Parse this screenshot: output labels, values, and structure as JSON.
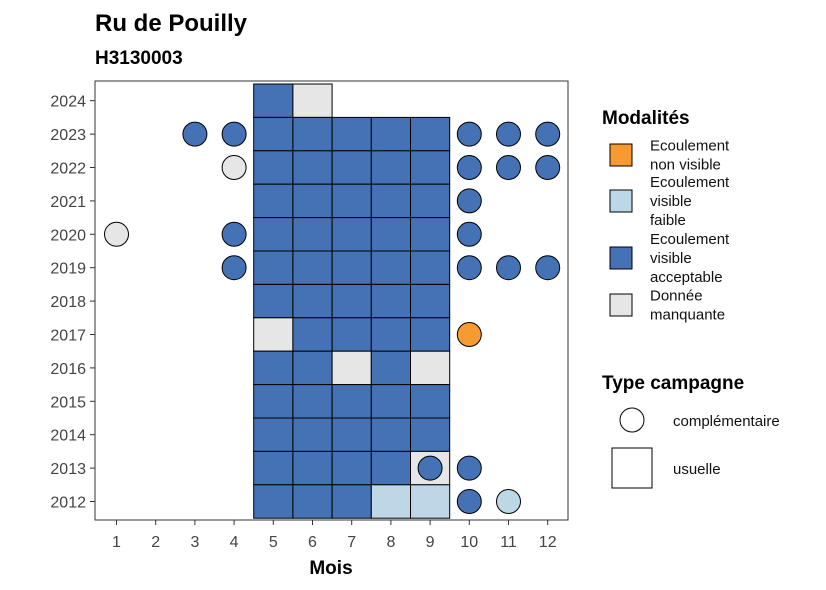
{
  "chart_data": {
    "type": "heatmap",
    "title": "Ru de Pouilly",
    "subtitle": "H3130003",
    "xlabel": "Mois",
    "ylabel": "",
    "x_ticks": [
      "1",
      "2",
      "3",
      "4",
      "5",
      "6",
      "7",
      "8",
      "9",
      "10",
      "11",
      "12"
    ],
    "y_ticks": [
      "2012",
      "2013",
      "2014",
      "2015",
      "2016",
      "2017",
      "2018",
      "2019",
      "2020",
      "2021",
      "2022",
      "2023",
      "2024"
    ],
    "x_range": [
      1,
      12
    ],
    "y_range": [
      2012,
      2024
    ],
    "grid": false,
    "colors": {
      "ecoulement_non_visible": "#F69A31",
      "ecoulement_visible_faible": "#BDD7E7",
      "ecoulement_visible_acceptable": "#4472B5",
      "donnee_manquante": "#E6E6E6"
    },
    "legend_modalites": {
      "title": "Modalités",
      "placement": "right",
      "items": [
        {
          "key": "ecoulement_non_visible",
          "lines": [
            "Ecoulement",
            "non visible"
          ]
        },
        {
          "key": "ecoulement_visible_faible",
          "lines": [
            "Ecoulement",
            "visible",
            "faible"
          ]
        },
        {
          "key": "ecoulement_visible_acceptable",
          "lines": [
            "Ecoulement",
            "visible",
            "acceptable"
          ]
        },
        {
          "key": "donnee_manquante",
          "lines": [
            "Donnée",
            "manquante"
          ]
        }
      ]
    },
    "legend_type": {
      "title": "Type campagne",
      "placement": "right",
      "items": [
        {
          "shape": "circle",
          "label": "complémentaire"
        },
        {
          "shape": "square",
          "label": "usuelle"
        }
      ]
    },
    "squares": [
      {
        "year": 2024,
        "month": 5,
        "value": "ecoulement_visible_acceptable"
      },
      {
        "year": 2024,
        "month": 6,
        "value": "donnee_manquante"
      },
      {
        "year": 2023,
        "month": 5,
        "value": "ecoulement_visible_acceptable"
      },
      {
        "year": 2023,
        "month": 6,
        "value": "ecoulement_visible_acceptable"
      },
      {
        "year": 2023,
        "month": 7,
        "value": "ecoulement_visible_acceptable"
      },
      {
        "year": 2023,
        "month": 8,
        "value": "ecoulement_visible_acceptable"
      },
      {
        "year": 2023,
        "month": 9,
        "value": "ecoulement_visible_acceptable"
      },
      {
        "year": 2022,
        "month": 5,
        "value": "ecoulement_visible_acceptable"
      },
      {
        "year": 2022,
        "month": 6,
        "value": "ecoulement_visible_acceptable"
      },
      {
        "year": 2022,
        "month": 7,
        "value": "ecoulement_visible_acceptable"
      },
      {
        "year": 2022,
        "month": 8,
        "value": "ecoulement_visible_acceptable"
      },
      {
        "year": 2022,
        "month": 9,
        "value": "ecoulement_visible_acceptable"
      },
      {
        "year": 2021,
        "month": 5,
        "value": "ecoulement_visible_acceptable"
      },
      {
        "year": 2021,
        "month": 6,
        "value": "ecoulement_visible_acceptable"
      },
      {
        "year": 2021,
        "month": 7,
        "value": "ecoulement_visible_acceptable"
      },
      {
        "year": 2021,
        "month": 8,
        "value": "ecoulement_visible_acceptable"
      },
      {
        "year": 2021,
        "month": 9,
        "value": "ecoulement_visible_acceptable"
      },
      {
        "year": 2020,
        "month": 5,
        "value": "ecoulement_visible_acceptable"
      },
      {
        "year": 2020,
        "month": 6,
        "value": "ecoulement_visible_acceptable"
      },
      {
        "year": 2020,
        "month": 7,
        "value": "ecoulement_visible_acceptable"
      },
      {
        "year": 2020,
        "month": 8,
        "value": "ecoulement_visible_acceptable"
      },
      {
        "year": 2020,
        "month": 9,
        "value": "ecoulement_visible_acceptable"
      },
      {
        "year": 2019,
        "month": 5,
        "value": "ecoulement_visible_acceptable"
      },
      {
        "year": 2019,
        "month": 6,
        "value": "ecoulement_visible_acceptable"
      },
      {
        "year": 2019,
        "month": 7,
        "value": "ecoulement_visible_acceptable"
      },
      {
        "year": 2019,
        "month": 8,
        "value": "ecoulement_visible_acceptable"
      },
      {
        "year": 2019,
        "month": 9,
        "value": "ecoulement_visible_acceptable"
      },
      {
        "year": 2018,
        "month": 5,
        "value": "ecoulement_visible_acceptable"
      },
      {
        "year": 2018,
        "month": 6,
        "value": "ecoulement_visible_acceptable"
      },
      {
        "year": 2018,
        "month": 7,
        "value": "ecoulement_visible_acceptable"
      },
      {
        "year": 2018,
        "month": 8,
        "value": "ecoulement_visible_acceptable"
      },
      {
        "year": 2018,
        "month": 9,
        "value": "ecoulement_visible_acceptable"
      },
      {
        "year": 2017,
        "month": 5,
        "value": "donnee_manquante"
      },
      {
        "year": 2017,
        "month": 6,
        "value": "ecoulement_visible_acceptable"
      },
      {
        "year": 2017,
        "month": 7,
        "value": "ecoulement_visible_acceptable"
      },
      {
        "year": 2017,
        "month": 8,
        "value": "ecoulement_visible_acceptable"
      },
      {
        "year": 2017,
        "month": 9,
        "value": "ecoulement_visible_acceptable"
      },
      {
        "year": 2016,
        "month": 5,
        "value": "ecoulement_visible_acceptable"
      },
      {
        "year": 2016,
        "month": 6,
        "value": "ecoulement_visible_acceptable"
      },
      {
        "year": 2016,
        "month": 7,
        "value": "donnee_manquante"
      },
      {
        "year": 2016,
        "month": 8,
        "value": "ecoulement_visible_acceptable"
      },
      {
        "year": 2016,
        "month": 9,
        "value": "donnee_manquante"
      },
      {
        "year": 2015,
        "month": 5,
        "value": "ecoulement_visible_acceptable"
      },
      {
        "year": 2015,
        "month": 6,
        "value": "ecoulement_visible_acceptable"
      },
      {
        "year": 2015,
        "month": 7,
        "value": "ecoulement_visible_acceptable"
      },
      {
        "year": 2015,
        "month": 8,
        "value": "ecoulement_visible_acceptable"
      },
      {
        "year": 2015,
        "month": 9,
        "value": "ecoulement_visible_acceptable"
      },
      {
        "year": 2014,
        "month": 5,
        "value": "ecoulement_visible_acceptable"
      },
      {
        "year": 2014,
        "month": 6,
        "value": "ecoulement_visible_acceptable"
      },
      {
        "year": 2014,
        "month": 7,
        "value": "ecoulement_visible_acceptable"
      },
      {
        "year": 2014,
        "month": 8,
        "value": "ecoulement_visible_acceptable"
      },
      {
        "year": 2014,
        "month": 9,
        "value": "ecoulement_visible_acceptable"
      },
      {
        "year": 2013,
        "month": 5,
        "value": "ecoulement_visible_acceptable"
      },
      {
        "year": 2013,
        "month": 6,
        "value": "ecoulement_visible_acceptable"
      },
      {
        "year": 2013,
        "month": 7,
        "value": "ecoulement_visible_acceptable"
      },
      {
        "year": 2013,
        "month": 8,
        "value": "ecoulement_visible_acceptable"
      },
      {
        "year": 2013,
        "month": 9,
        "value": "donnee_manquante"
      },
      {
        "year": 2012,
        "month": 5,
        "value": "ecoulement_visible_acceptable"
      },
      {
        "year": 2012,
        "month": 6,
        "value": "ecoulement_visible_acceptable"
      },
      {
        "year": 2012,
        "month": 7,
        "value": "ecoulement_visible_acceptable"
      },
      {
        "year": 2012,
        "month": 8,
        "value": "ecoulement_visible_faible"
      },
      {
        "year": 2012,
        "month": 9,
        "value": "ecoulement_visible_faible"
      }
    ],
    "circles": [
      {
        "year": 2023,
        "month": 3,
        "value": "ecoulement_visible_acceptable"
      },
      {
        "year": 2023,
        "month": 4,
        "value": "ecoulement_visible_acceptable"
      },
      {
        "year": 2023,
        "month": 10,
        "value": "ecoulement_visible_acceptable"
      },
      {
        "year": 2023,
        "month": 11,
        "value": "ecoulement_visible_acceptable"
      },
      {
        "year": 2023,
        "month": 12,
        "value": "ecoulement_visible_acceptable"
      },
      {
        "year": 2022,
        "month": 4,
        "value": "donnee_manquante"
      },
      {
        "year": 2022,
        "month": 10,
        "value": "ecoulement_visible_acceptable"
      },
      {
        "year": 2022,
        "month": 11,
        "value": "ecoulement_visible_acceptable"
      },
      {
        "year": 2022,
        "month": 12,
        "value": "ecoulement_visible_acceptable"
      },
      {
        "year": 2021,
        "month": 10,
        "value": "ecoulement_visible_acceptable"
      },
      {
        "year": 2020,
        "month": 1,
        "value": "donnee_manquante"
      },
      {
        "year": 2020,
        "month": 4,
        "value": "ecoulement_visible_acceptable"
      },
      {
        "year": 2020,
        "month": 10,
        "value": "ecoulement_visible_acceptable"
      },
      {
        "year": 2019,
        "month": 4,
        "value": "ecoulement_visible_acceptable"
      },
      {
        "year": 2019,
        "month": 10,
        "value": "ecoulement_visible_acceptable"
      },
      {
        "year": 2019,
        "month": 11,
        "value": "ecoulement_visible_acceptable"
      },
      {
        "year": 2019,
        "month": 12,
        "value": "ecoulement_visible_acceptable"
      },
      {
        "year": 2017,
        "month": 10,
        "value": "ecoulement_non_visible"
      },
      {
        "year": 2013,
        "month": 9,
        "value": "ecoulement_visible_acceptable"
      },
      {
        "year": 2013,
        "month": 10,
        "value": "ecoulement_visible_acceptable"
      },
      {
        "year": 2012,
        "month": 10,
        "value": "ecoulement_visible_acceptable"
      },
      {
        "year": 2012,
        "month": 11,
        "value": "ecoulement_visible_faible"
      }
    ]
  }
}
